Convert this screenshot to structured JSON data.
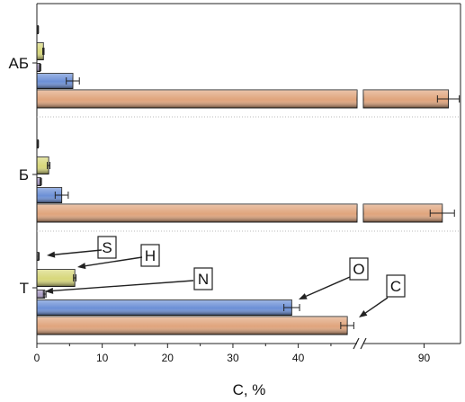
{
  "chart_data": {
    "type": "bar",
    "orientation": "horizontal",
    "xlabel": "C, %",
    "ylabel": "",
    "xlim_segments": [
      [
        0,
        49
      ],
      [
        85,
        93
      ]
    ],
    "x_ticks": [
      0,
      10,
      20,
      30,
      40,
      90
    ],
    "categories": [
      "Т",
      "Б",
      "АБ"
    ],
    "series": [
      {
        "name": "C",
        "color": "#e0a47c",
        "values": [
          47.5,
          91.5,
          92
        ],
        "errors": [
          1.0,
          1.0,
          0.9
        ]
      },
      {
        "name": "O",
        "color": "#6b8fd6",
        "values": [
          39,
          3.8,
          5.5
        ],
        "errors": [
          1.2,
          1.0,
          1.0
        ]
      },
      {
        "name": "N",
        "color": "#a99bc4",
        "values": [
          1.2,
          0.6,
          0.5
        ],
        "errors": [
          0.2,
          0.1,
          0.1
        ]
      },
      {
        "name": "H",
        "color": "#d7d77a",
        "values": [
          5.8,
          1.8,
          1.0
        ],
        "errors": [
          0.2,
          0.2,
          0.1
        ]
      },
      {
        "name": "S",
        "color": "#777777",
        "values": [
          0.3,
          0.2,
          0.2
        ],
        "errors": [
          0.05,
          0.05,
          0.05
        ]
      }
    ],
    "annotations": [
      "S",
      "H",
      "N",
      "O",
      "C"
    ],
    "grid": false,
    "group_separators": "dotted"
  }
}
